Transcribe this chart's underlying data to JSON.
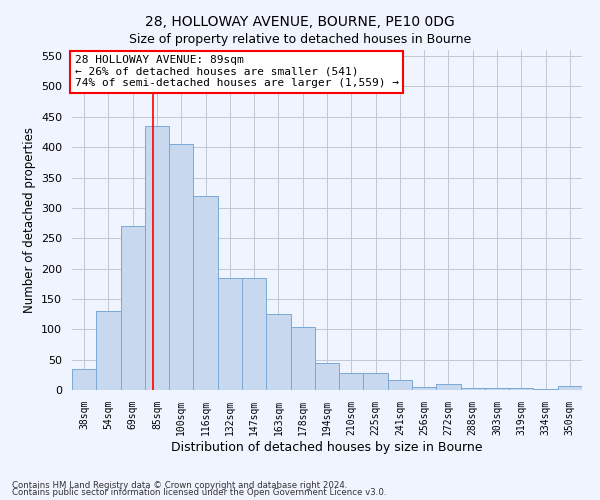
{
  "title1": "28, HOLLOWAY AVENUE, BOURNE, PE10 0DG",
  "title2": "Size of property relative to detached houses in Bourne",
  "xlabel": "Distribution of detached houses by size in Bourne",
  "ylabel": "Number of detached properties",
  "categories": [
    "38sqm",
    "54sqm",
    "69sqm",
    "85sqm",
    "100sqm",
    "116sqm",
    "132sqm",
    "147sqm",
    "163sqm",
    "178sqm",
    "194sqm",
    "210sqm",
    "225sqm",
    "241sqm",
    "256sqm",
    "272sqm",
    "288sqm",
    "303sqm",
    "319sqm",
    "334sqm",
    "350sqm"
  ],
  "values": [
    35,
    130,
    270,
    435,
    405,
    320,
    185,
    185,
    125,
    103,
    45,
    28,
    28,
    17,
    5,
    10,
    3,
    3,
    3,
    2,
    7
  ],
  "bar_color": "#c8d8ee",
  "bar_edge_color": "#7aa8d4",
  "red_line_x": 2.85,
  "annotation_line1": "28 HOLLOWAY AVENUE: 89sqm",
  "annotation_line2": "← 26% of detached houses are smaller (541)",
  "annotation_line3": "74% of semi-detached houses are larger (1,559) →",
  "annotation_box_color": "white",
  "annotation_box_edge": "red",
  "ylim": [
    0,
    560
  ],
  "yticks": [
    0,
    50,
    100,
    150,
    200,
    250,
    300,
    350,
    400,
    450,
    500,
    550
  ],
  "footnote1": "Contains HM Land Registry data © Crown copyright and database right 2024.",
  "footnote2": "Contains public sector information licensed under the Open Government Licence v3.0.",
  "bg_color": "#f0f4ff",
  "grid_color": "#c0c8d8",
  "title1_fontsize": 10,
  "title2_fontsize": 9
}
